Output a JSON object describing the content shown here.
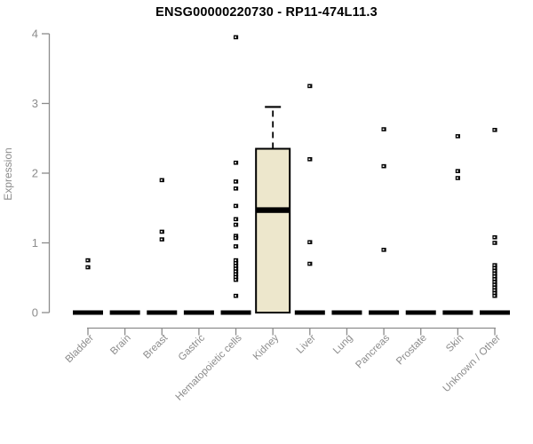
{
  "chart_data": {
    "type": "boxplot",
    "title": "ENSG00000220730 - RP11-474L11.3",
    "ylabel": "Expression",
    "xlabel": "",
    "ylim": [
      0,
      4
    ],
    "yticks": [
      0,
      1,
      2,
      3,
      4
    ],
    "grid": false,
    "legend": "none",
    "categories": [
      "Bladder",
      "Brain",
      "Breast",
      "Gastric",
      "Hematopoietic cells",
      "Kidney",
      "Liver",
      "Lung",
      "Pancreas",
      "Prostate",
      "Skin",
      "Unknown / Other"
    ],
    "groups": [
      {
        "label": "Bladder",
        "box": {
          "whisker_low": 0,
          "q1": 0,
          "median": 0,
          "q3": 0,
          "whisker_high": 0
        },
        "points": [
          0.75,
          0.65
        ]
      },
      {
        "label": "Brain",
        "box": {
          "whisker_low": 0,
          "q1": 0,
          "median": 0,
          "q3": 0,
          "whisker_high": 0
        },
        "points": []
      },
      {
        "label": "Breast",
        "box": {
          "whisker_low": 0,
          "q1": 0,
          "median": 0,
          "q3": 0,
          "whisker_high": 0
        },
        "points": [
          1.9,
          1.16,
          1.05
        ]
      },
      {
        "label": "Gastric",
        "box": {
          "whisker_low": 0,
          "q1": 0,
          "median": 0,
          "q3": 0,
          "whisker_high": 0
        },
        "points": []
      },
      {
        "label": "Hematopoietic cells",
        "box": {
          "whisker_low": 0,
          "q1": 0,
          "median": 0,
          "q3": 0,
          "whisker_high": 0
        },
        "points": [
          3.95,
          2.15,
          1.88,
          1.78,
          1.53,
          1.34,
          1.26,
          1.1,
          1.07,
          0.95,
          0.75,
          0.71,
          0.67,
          0.63,
          0.59,
          0.55,
          0.51,
          0.47,
          0.24
        ]
      },
      {
        "label": "Kidney",
        "box": {
          "whisker_low": 0,
          "q1": 0,
          "median": 1.47,
          "q3": 2.35,
          "whisker_high": 2.95
        },
        "points": []
      },
      {
        "label": "Liver",
        "box": {
          "whisker_low": 0,
          "q1": 0,
          "median": 0,
          "q3": 0,
          "whisker_high": 0
        },
        "points": [
          3.25,
          2.2,
          1.01,
          0.7
        ]
      },
      {
        "label": "Lung",
        "box": {
          "whisker_low": 0,
          "q1": 0,
          "median": 0,
          "q3": 0,
          "whisker_high": 0
        },
        "points": []
      },
      {
        "label": "Pancreas",
        "box": {
          "whisker_low": 0,
          "q1": 0,
          "median": 0,
          "q3": 0,
          "whisker_high": 0
        },
        "points": [
          2.63,
          2.1,
          0.9
        ]
      },
      {
        "label": "Prostate",
        "box": {
          "whisker_low": 0,
          "q1": 0,
          "median": 0,
          "q3": 0,
          "whisker_high": 0
        },
        "points": []
      },
      {
        "label": "Skin",
        "box": {
          "whisker_low": 0,
          "q1": 0,
          "median": 0,
          "q3": 0,
          "whisker_high": 0
        },
        "points": [
          2.53,
          2.03,
          1.93
        ]
      },
      {
        "label": "Unknown / Other",
        "box": {
          "whisker_low": 0,
          "q1": 0,
          "median": 0,
          "q3": 0,
          "whisker_high": 0
        },
        "points": [
          2.62,
          1.08,
          1.0,
          0.68,
          0.64,
          0.6,
          0.56,
          0.52,
          0.48,
          0.44,
          0.4,
          0.36,
          0.32,
          0.28,
          0.24
        ]
      }
    ],
    "colors": {
      "box_fill": "#EDE7CC",
      "box_stroke": "#000000",
      "median": "#000000",
      "point": "#000000",
      "axis": "#8c8c8c",
      "tick_text": "#8c8c8c",
      "title_text": "#000000"
    }
  }
}
